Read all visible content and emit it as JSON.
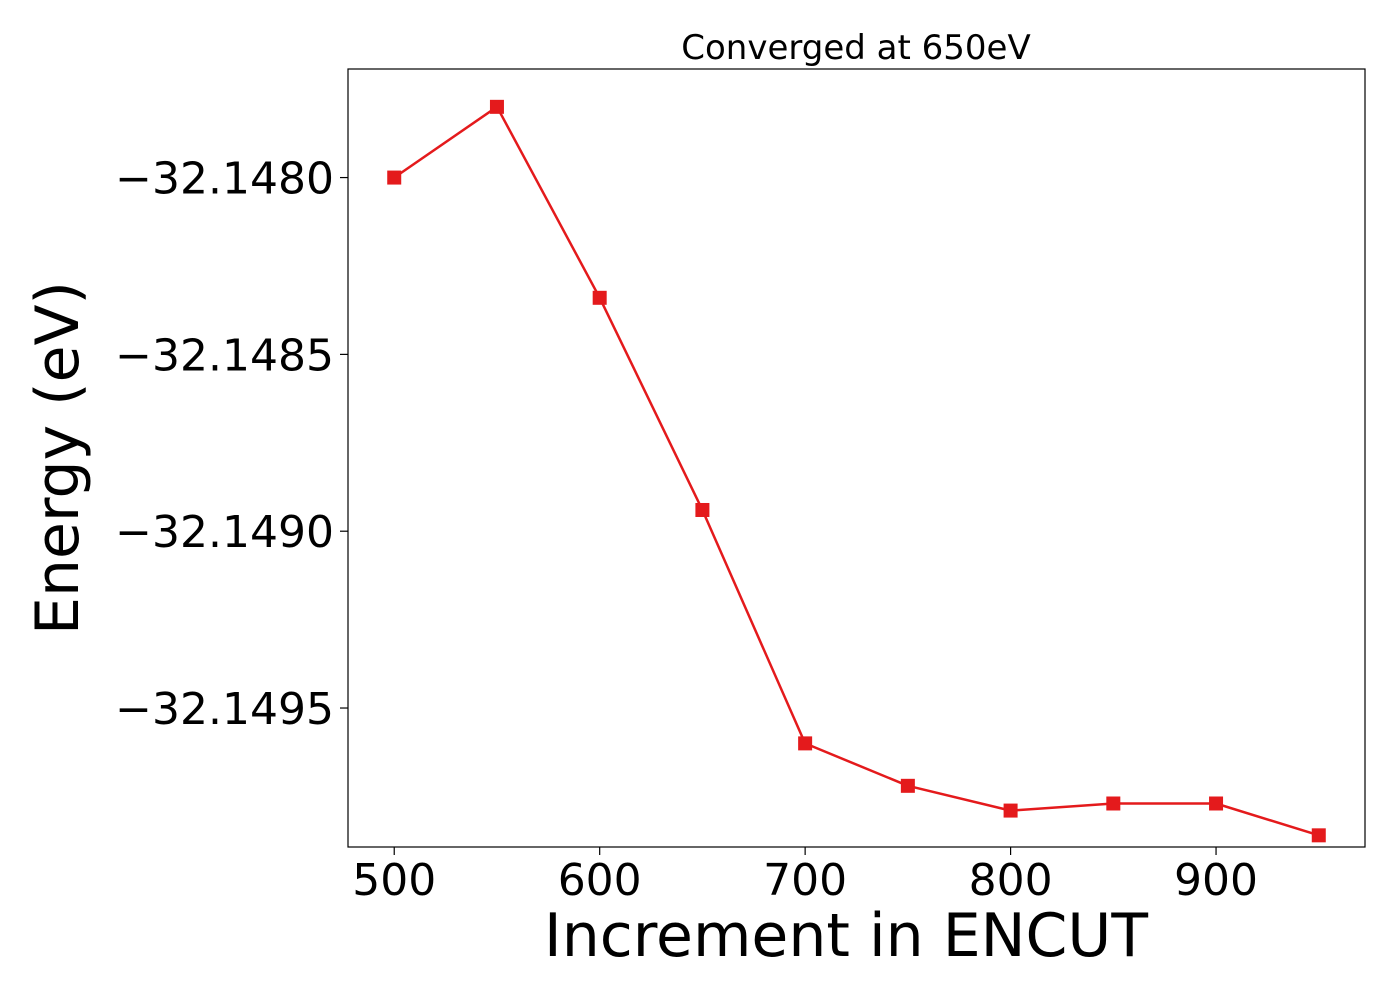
{
  "chart_data": {
    "type": "line",
    "title": "Converged at 650eV",
    "xlabel": "Increment in ENCUT",
    "ylabel": "Energy (eV)",
    "x": [
      500,
      550,
      600,
      650,
      700,
      750,
      800,
      850,
      900,
      950
    ],
    "series": [
      {
        "values": [
          -32.148,
          -32.1478,
          -32.14834,
          -32.14894,
          -32.1496,
          -32.14972,
          -32.14979,
          -32.14977,
          -32.14977,
          -32.14986
        ],
        "color": "#e41a1c",
        "marker": "square"
      }
    ],
    "xticks": [
      500,
      600,
      700,
      800,
      900
    ],
    "xtick_labels": [
      "500",
      "600",
      "700",
      "800",
      "900"
    ],
    "yticks": [
      -32.148,
      -32.1485,
      -32.149,
      -32.1495
    ],
    "ytick_labels": [
      "−32.1480",
      "−32.1485",
      "−32.1490",
      "−32.1495"
    ],
    "xlim": [
      477.5,
      972.5
    ],
    "ylim": [
      -32.149893,
      -32.147693
    ],
    "grid": false,
    "legend": "none"
  }
}
